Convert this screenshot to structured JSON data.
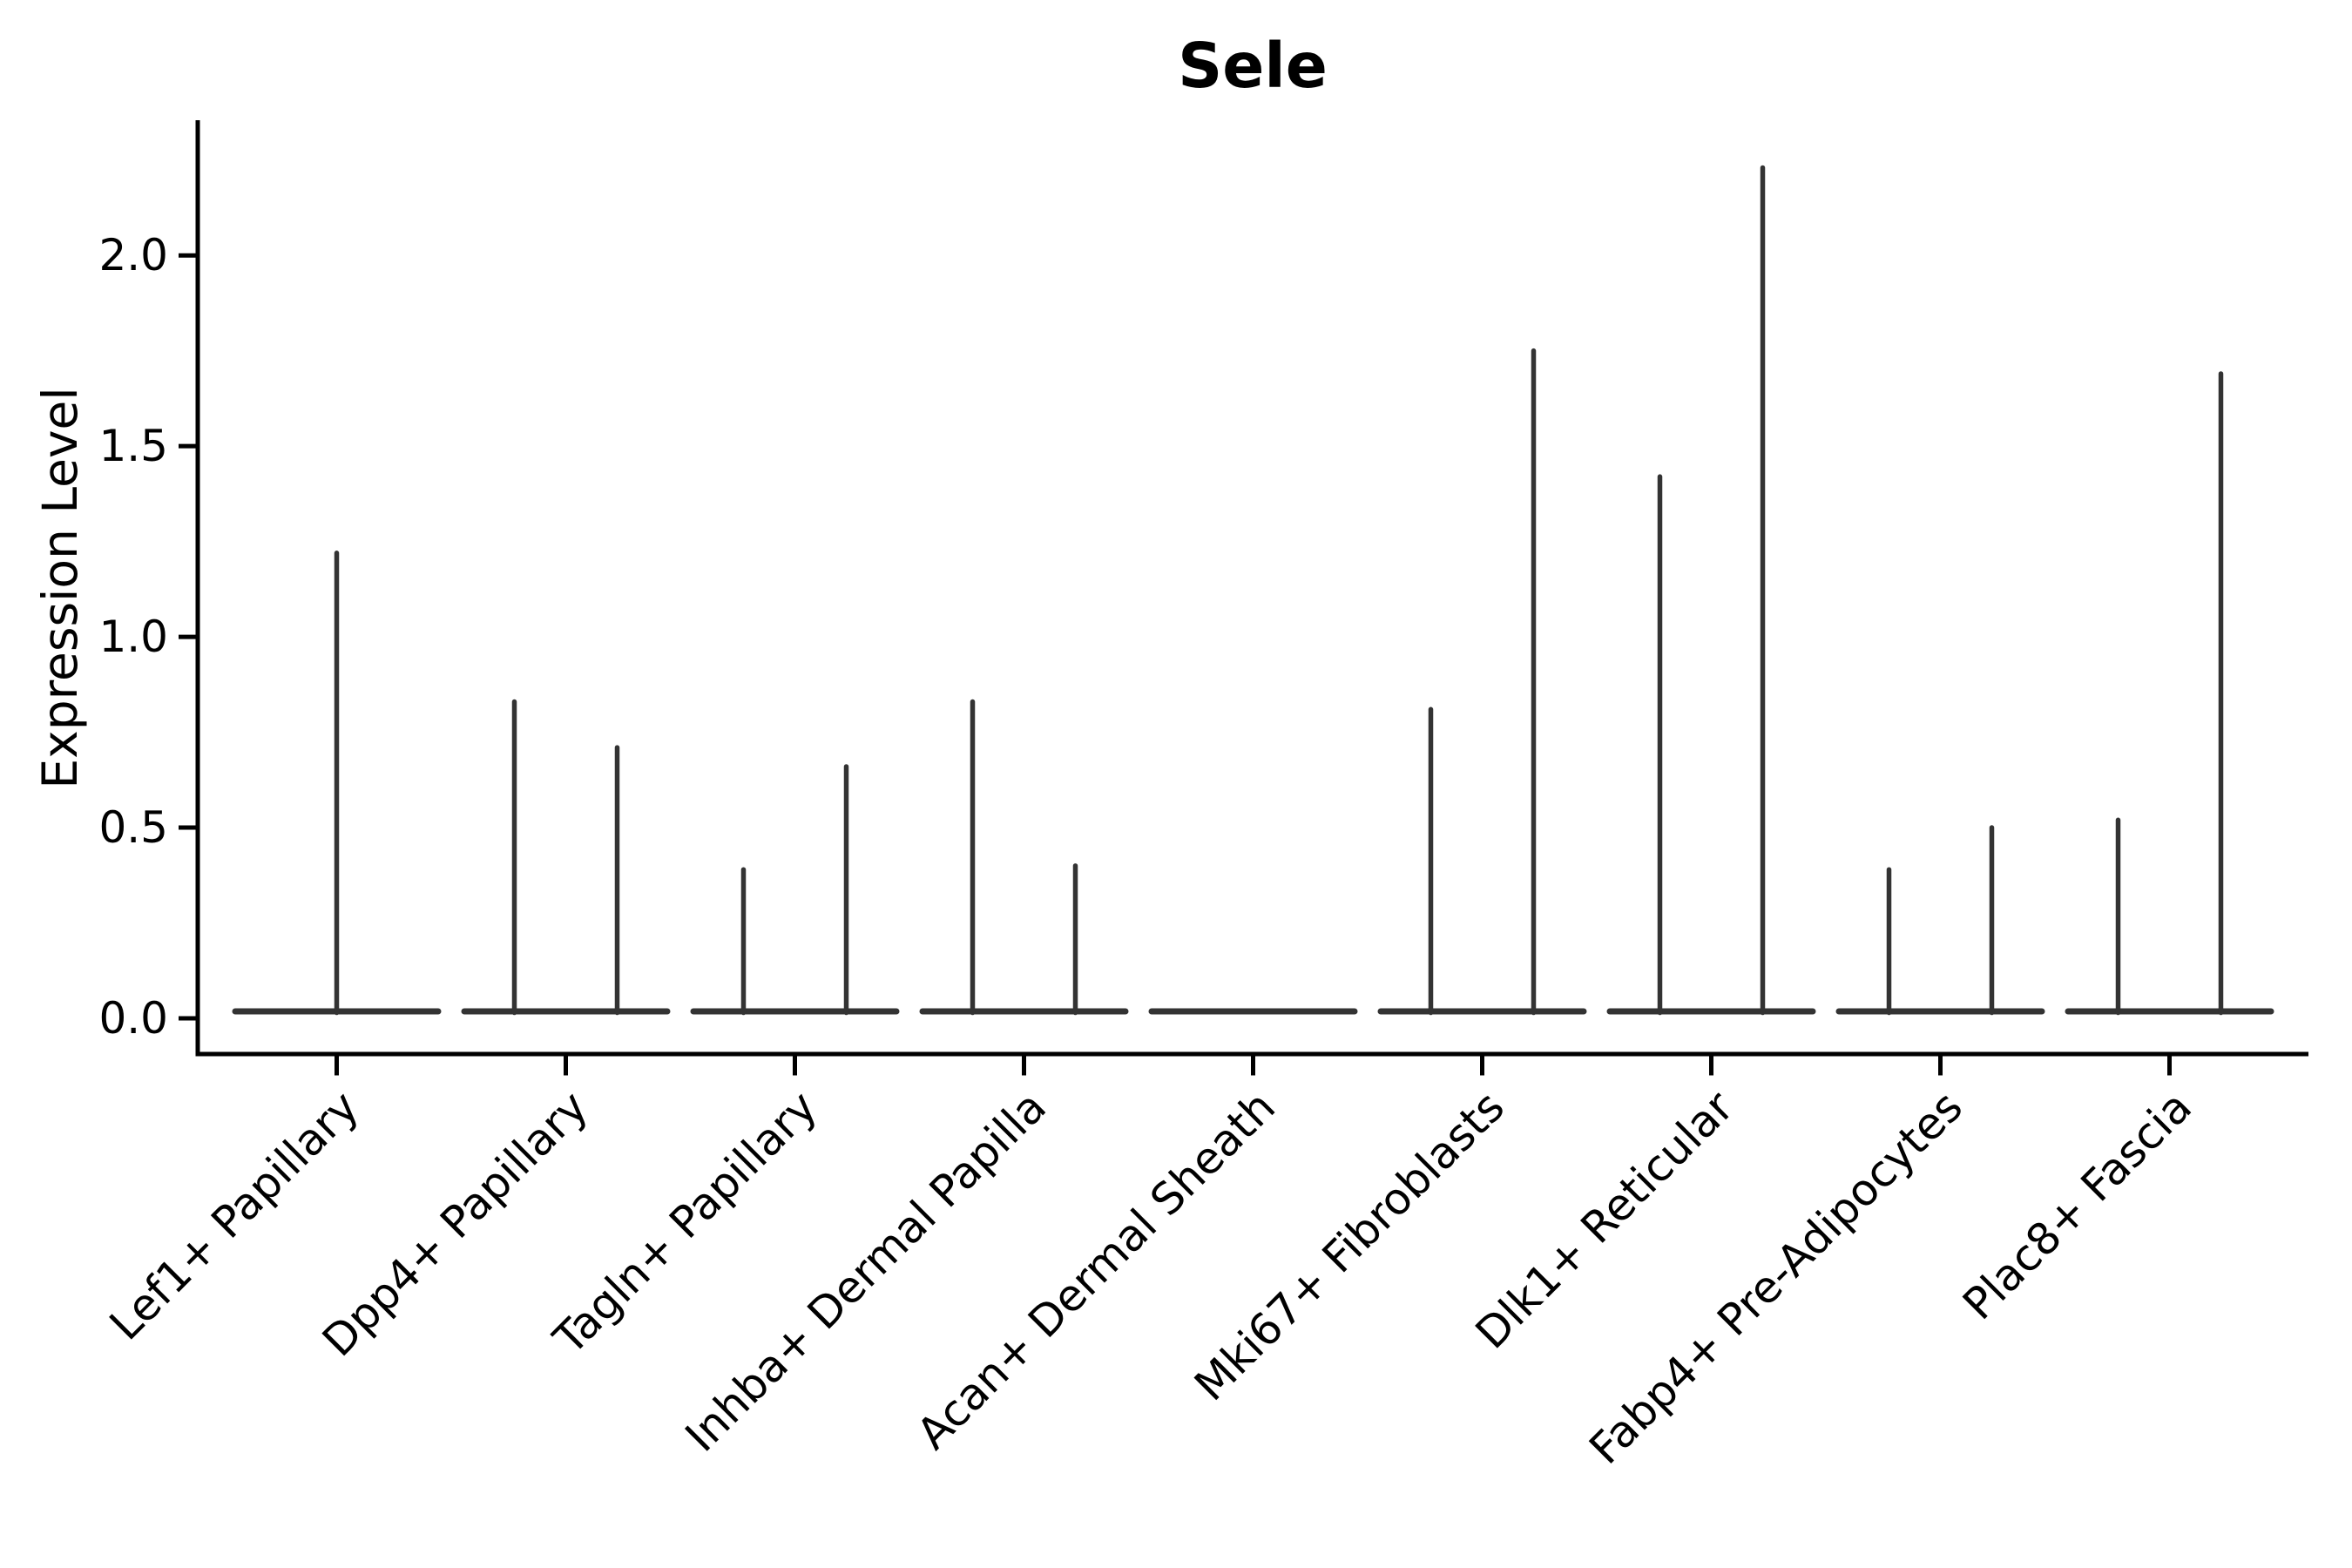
{
  "title": {
    "text": "Sele"
  },
  "y_axis": {
    "label": "Expression Level",
    "tick_labels": [
      "0.0",
      "0.5",
      "1.0",
      "1.5",
      "2.0"
    ],
    "tick_values": [
      0.0,
      0.5,
      1.0,
      1.5,
      2.0
    ]
  },
  "x_axis": {
    "categories": [
      "Lef1+ Papillary",
      "Dpp4+ Papillary",
      "Tagln+ Papillary",
      "Inhba+ Dermal Papilla",
      "Acan+ Dermal Sheath",
      "Mki67+ Fibroblasts",
      "Dlk1+ Reticular",
      "Fabp4+ Pre-Adipocytes",
      "Plac8+ Fascia"
    ]
  },
  "colors": {
    "background": "#ffffff",
    "axis": "#000000",
    "text": "#000000",
    "violin": "#333333"
  },
  "chart_data": {
    "type": "violin",
    "title": "Sele",
    "xlabel": "",
    "ylabel": "Expression Level",
    "ylim": [
      -0.09,
      2.35
    ],
    "yticks": [
      0.0,
      0.5,
      1.0,
      1.5,
      2.0
    ],
    "grid": false,
    "legend": null,
    "baseline_value": 0.0,
    "categories": [
      "Lef1+ Papillary",
      "Dpp4+ Papillary",
      "Tagln+ Papillary",
      "Inhba+ Dermal Papilla",
      "Acan+ Dermal Sheath",
      "Mki67+ Fibroblasts",
      "Dlk1+ Reticular",
      "Fabp4+ Pre-Adipocytes",
      "Plac8+ Fascia"
    ],
    "violins": [
      {
        "category": "Lef1+ Papillary",
        "spikes": [
          {
            "slot": "center",
            "value": 1.22
          }
        ]
      },
      {
        "category": "Dpp4+ Papillary",
        "spikes": [
          {
            "slot": "left",
            "value": 0.83
          },
          {
            "slot": "right",
            "value": 0.71
          }
        ]
      },
      {
        "category": "Tagln+ Papillary",
        "spikes": [
          {
            "slot": "left",
            "value": 0.39
          },
          {
            "slot": "right",
            "value": 0.66
          }
        ]
      },
      {
        "category": "Inhba+ Dermal Papilla",
        "spikes": [
          {
            "slot": "left",
            "value": 0.83
          },
          {
            "slot": "right",
            "value": 0.4
          }
        ]
      },
      {
        "category": "Acan+ Dermal Sheath",
        "spikes": []
      },
      {
        "category": "Mki67+ Fibroblasts",
        "spikes": [
          {
            "slot": "left",
            "value": 0.81
          },
          {
            "slot": "right",
            "value": 1.75
          }
        ]
      },
      {
        "category": "Dlk1+ Reticular",
        "spikes": [
          {
            "slot": "left",
            "value": 1.42
          },
          {
            "slot": "right",
            "value": 2.23
          }
        ]
      },
      {
        "category": "Fabp4+ Pre-Adipocytes",
        "spikes": [
          {
            "slot": "left",
            "value": 0.39
          },
          {
            "slot": "right",
            "value": 0.5
          }
        ]
      },
      {
        "category": "Plac8+ Fascia",
        "spikes": [
          {
            "slot": "left",
            "value": 0.52
          },
          {
            "slot": "right",
            "value": 1.69
          }
        ]
      }
    ]
  }
}
